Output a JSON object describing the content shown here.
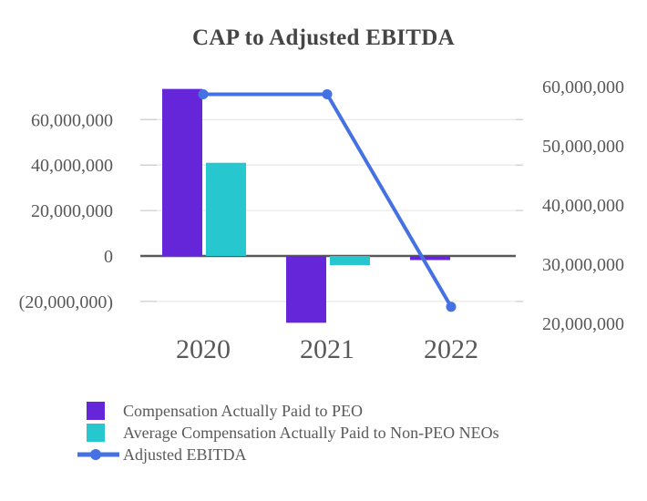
{
  "chart_data": {
    "type": "bar",
    "subtype": "bar-line-combo",
    "title": "CAP to Adjusted EBITDA",
    "categories": [
      "2020",
      "2021",
      "2022"
    ],
    "series": [
      {
        "name": "Compensation Actually Paid to PEO",
        "type": "bar",
        "axis": "left",
        "color": "#6526d9",
        "values": [
          73500000,
          -29400000,
          -1800000
        ]
      },
      {
        "name": "Average Compensation Actually Paid to Non-PEO NEOs",
        "type": "bar",
        "axis": "left",
        "color": "#26c7ce",
        "values": [
          41000000,
          -4000000,
          0
        ]
      },
      {
        "name": "Adjusted EBITDA",
        "type": "line",
        "axis": "right",
        "color": "#4571e3",
        "values": [
          58700000,
          58700000,
          22800000
        ]
      }
    ],
    "left_axis": {
      "ticks": [
        {
          "value": 60000000,
          "label": "60,000,000"
        },
        {
          "value": 40000000,
          "label": "40,000,000"
        },
        {
          "value": 20000000,
          "label": "20,000,000"
        },
        {
          "value": 0,
          "label": "0"
        },
        {
          "value": -20000000,
          "label": "(20,000,000)"
        }
      ],
      "range": [
        -30000000,
        75000000
      ]
    },
    "right_axis": {
      "ticks": [
        {
          "value": 60000000,
          "label": "60,000,000"
        },
        {
          "value": 50000000,
          "label": "50,000,000"
        },
        {
          "value": 40000000,
          "label": "40,000,000"
        },
        {
          "value": 30000000,
          "label": "30,000,000"
        },
        {
          "value": 20000000,
          "label": "20,000,000"
        }
      ],
      "range": [
        20000000,
        60000000
      ]
    },
    "grid": true,
    "legend_position": "bottom-left",
    "colors": {
      "gridline": "#e9e9e9",
      "tick": "#cfcfcf",
      "zero_line": "#58595b",
      "axis_text": "#58595b",
      "title_text": "#454545"
    }
  }
}
